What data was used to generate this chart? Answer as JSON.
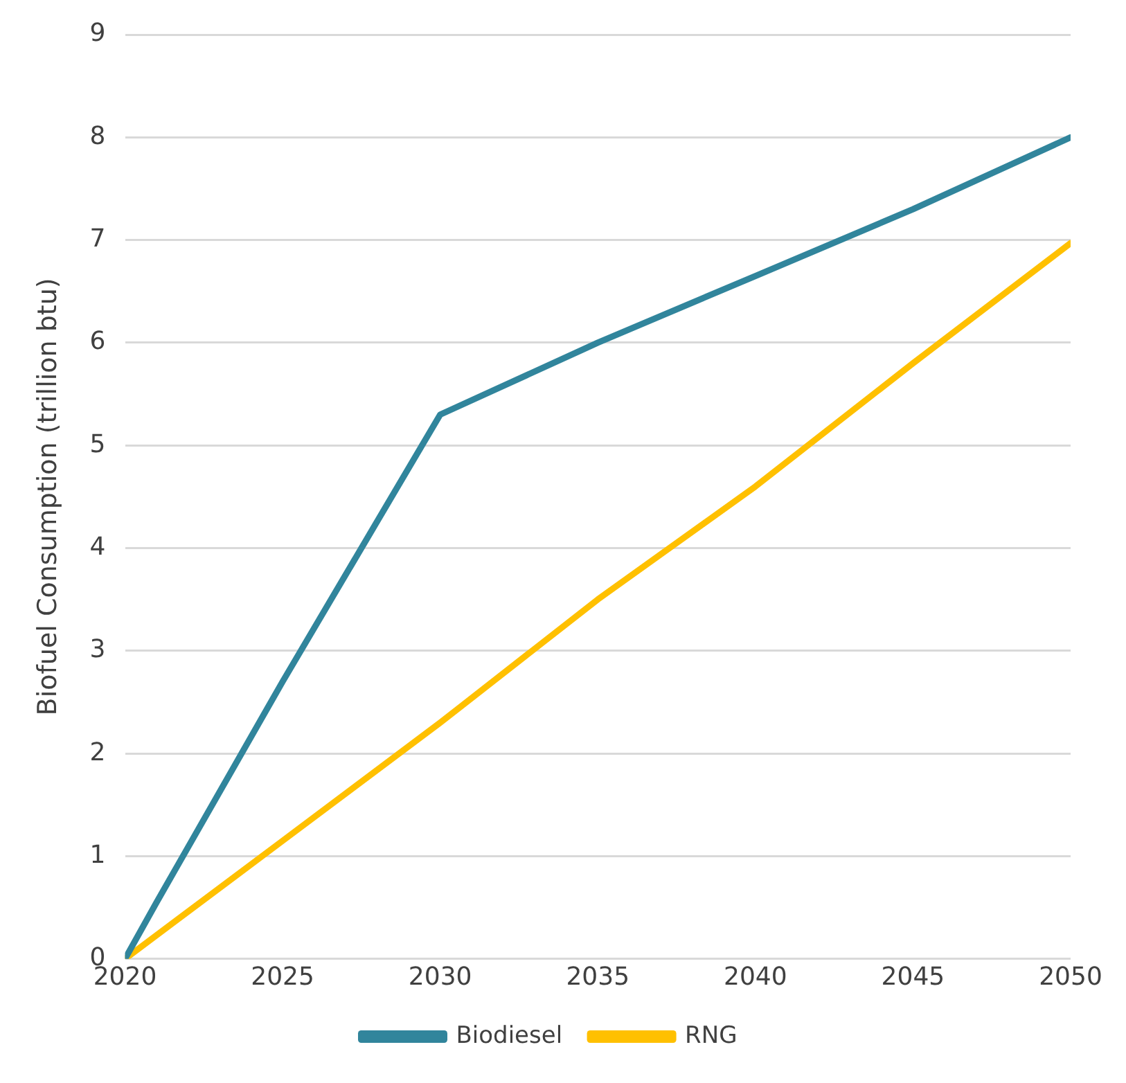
{
  "chart_data": {
    "type": "line",
    "ylabel": "Biofuel Consumption (trillion btu)",
    "x": [
      2020,
      2021,
      2025,
      2030,
      2035,
      2040,
      2045,
      2050
    ],
    "series": [
      {
        "name": "Biodiesel",
        "color": "#31859c",
        "values": [
          0,
          0.55,
          2.7,
          5.3,
          6.0,
          6.65,
          7.3,
          8.0
        ]
      },
      {
        "name": "RNG",
        "color": "#ffc000",
        "x": [
          2020,
          2025,
          2030,
          2035,
          2040,
          2045,
          2050
        ],
        "values": [
          0,
          1.15,
          2.3,
          3.5,
          4.6,
          5.8,
          6.97
        ]
      }
    ],
    "xlim": [
      2020,
      2050
    ],
    "xticks": [
      2020,
      2025,
      2030,
      2035,
      2040,
      2045,
      2050
    ],
    "ylim": [
      0,
      9
    ],
    "yticks": [
      0,
      1,
      2,
      3,
      4,
      5,
      6,
      7,
      8,
      9
    ],
    "grid": "y",
    "legend": "bottom",
    "marker": "none",
    "line_style": "solid"
  }
}
